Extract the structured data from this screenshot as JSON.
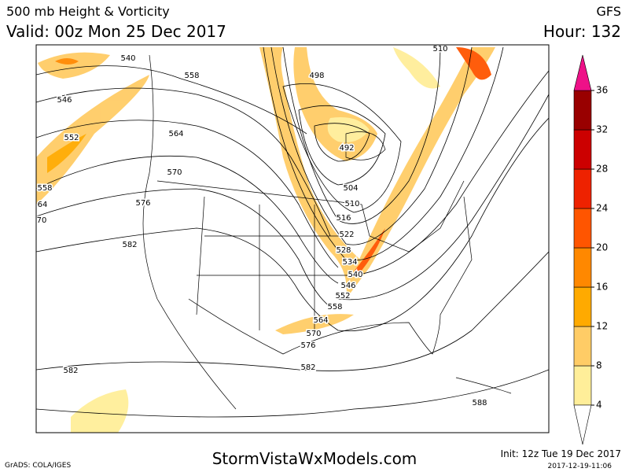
{
  "header": {
    "title": "500 mb Height & Vorticity",
    "model": "GFS",
    "valid": "Valid: 00z Mon 25 Dec 2017",
    "hour": "Hour: 132"
  },
  "colorbar": {
    "levels": [
      4,
      8,
      12,
      16,
      20,
      24,
      28,
      32,
      36
    ],
    "colors": [
      "#ffee99",
      "#ffcc66",
      "#ffaa00",
      "#ff8800",
      "#ff5500",
      "#ee2200",
      "#cc0000",
      "#990000"
    ],
    "over_color": "#ee1188",
    "under_color": "#ffffff"
  },
  "contour_labels": [
    540,
    546,
    552,
    558,
    64,
    70,
    558,
    564,
    570,
    576,
    582,
    510,
    498,
    492,
    504,
    510,
    516,
    522,
    528,
    534,
    540,
    546,
    552,
    558,
    564,
    570,
    576,
    582,
    582,
    588
  ],
  "footer": {
    "credit": "GrADS: COLA/IGES",
    "site": "StormVistaWxModels.com",
    "init": "Init: 12z Tue 19 Dec 2017",
    "stamp": "2017-12-19-11:06"
  }
}
